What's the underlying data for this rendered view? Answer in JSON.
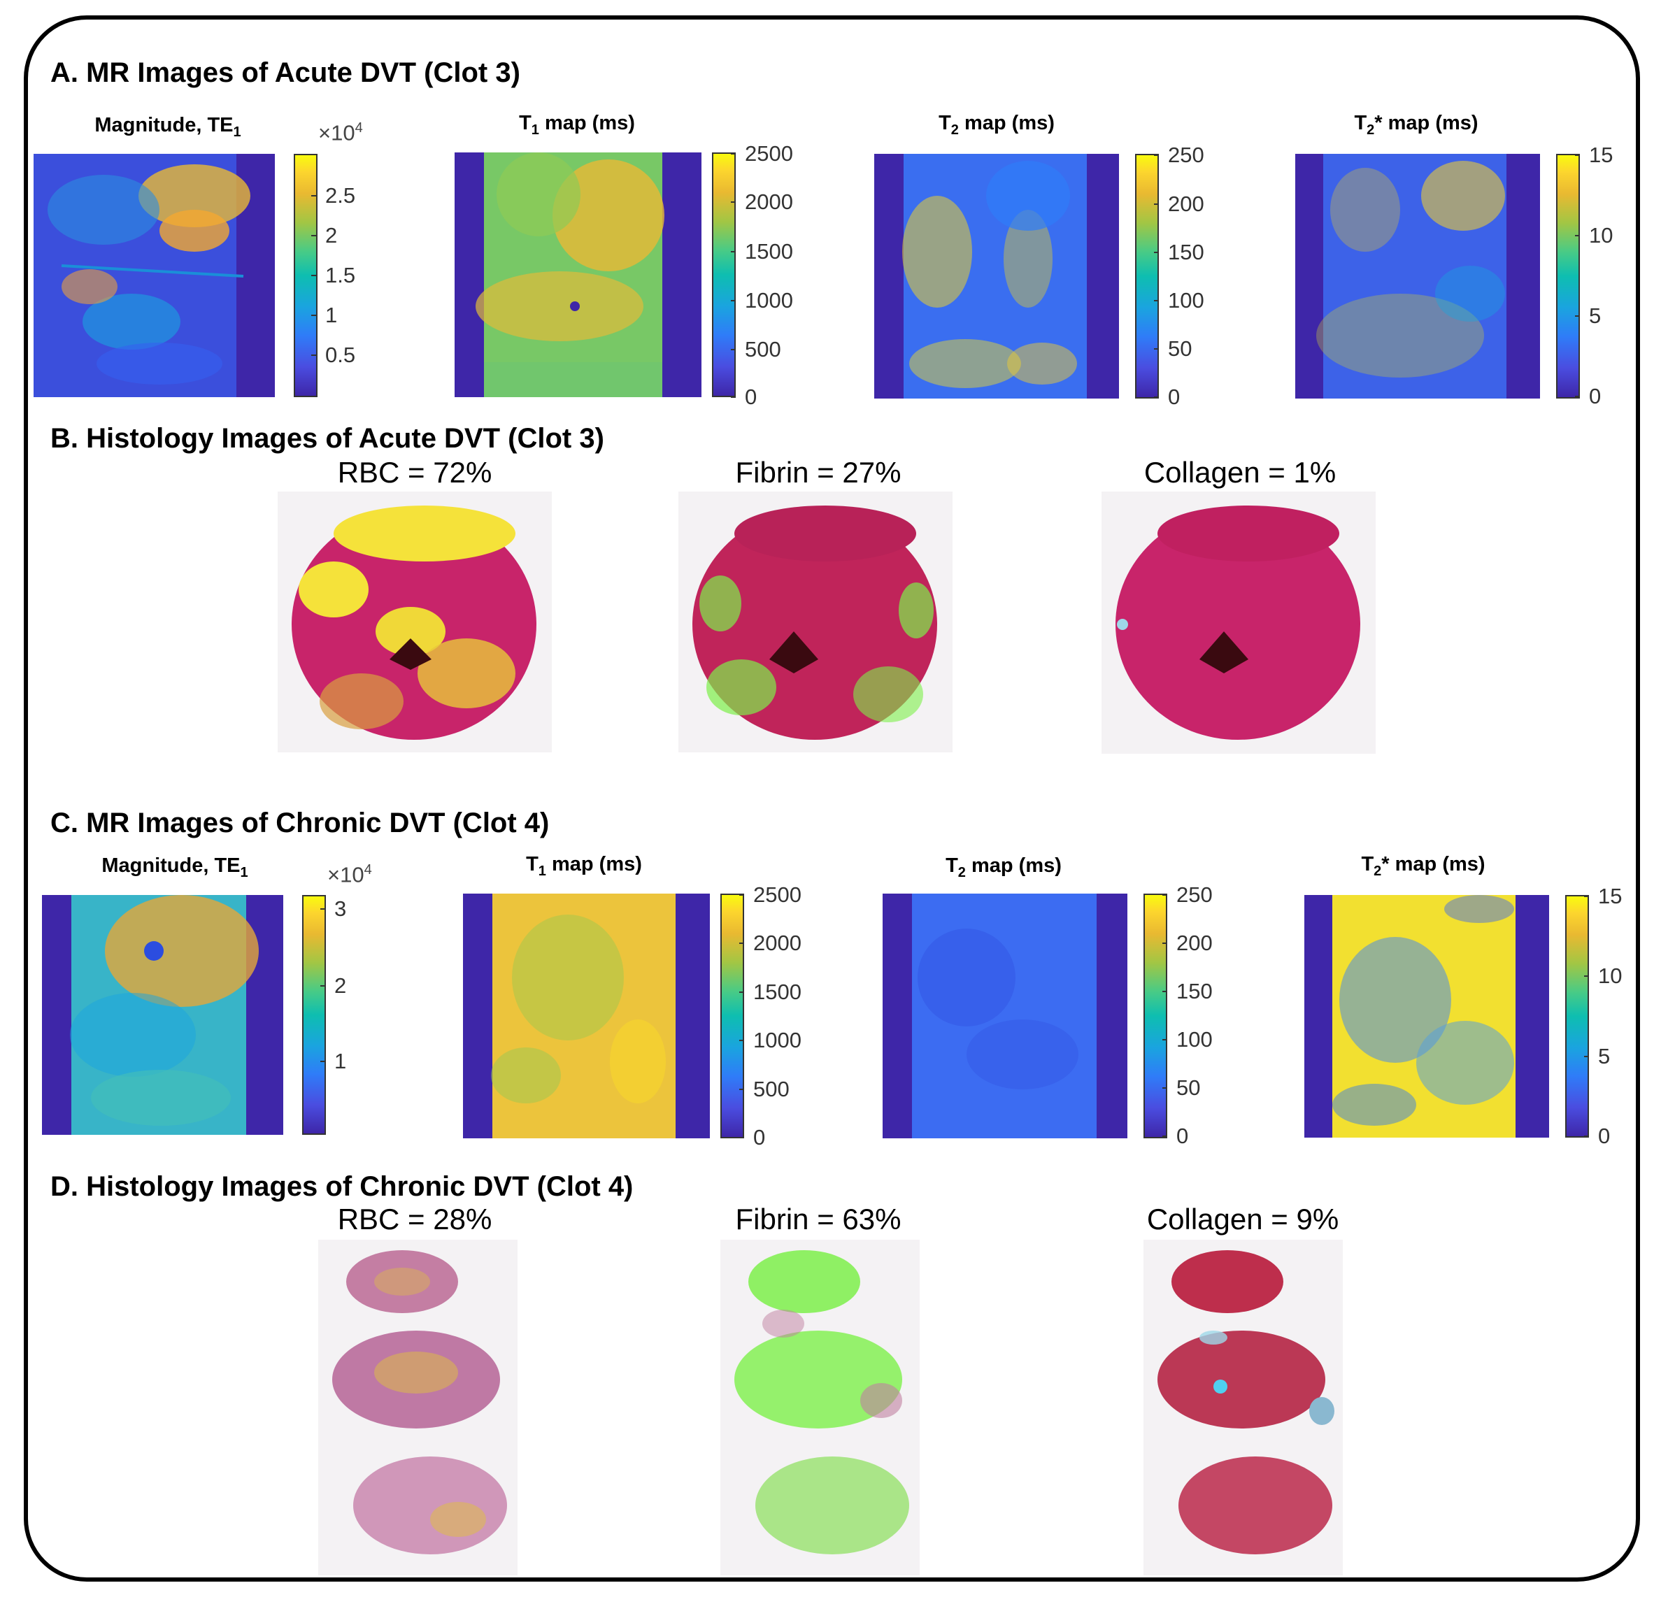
{
  "sections": {
    "a": "A. MR Images of Acute DVT (Clot 3)",
    "b": "B. Histology Images of Acute DVT (Clot 3)",
    "c": "C. MR Images of Chronic DVT (Clot 4)",
    "d": "D. Histology Images of Chronic DVT (Clot 4)"
  },
  "map_titles": {
    "magnitude": "Magnitude, TE",
    "magnitude_sub": "1",
    "t1_pre": "T",
    "t1_sub": "1",
    "t1_post": " map (ms)",
    "t2_pre": "T",
    "t2_sub": "2",
    "t2_post": " map (ms)",
    "t2s_pre": "T",
    "t2s_sub": "2",
    "t2s_post": "* map (ms)"
  },
  "multiplier": {
    "base": "×10",
    "exp": "4"
  },
  "colorbars": {
    "a_mag": {
      "ticks": [
        "2.5",
        "2",
        "1.5",
        "1",
        "0.5"
      ]
    },
    "a_t1": {
      "ticks": [
        "2500",
        "2000",
        "1500",
        "1000",
        "500",
        "0"
      ]
    },
    "a_t2": {
      "ticks": [
        "250",
        "200",
        "150",
        "100",
        "50",
        "0"
      ]
    },
    "a_t2s": {
      "ticks": [
        "15",
        "10",
        "5",
        "0"
      ]
    },
    "c_mag": {
      "ticks": [
        "3",
        "2",
        "1"
      ]
    },
    "c_t1": {
      "ticks": [
        "2500",
        "2000",
        "1500",
        "1000",
        "500",
        "0"
      ]
    },
    "c_t2": {
      "ticks": [
        "250",
        "200",
        "150",
        "100",
        "50",
        "0"
      ]
    },
    "c_t2s": {
      "ticks": [
        "15",
        "10",
        "5",
        "0"
      ]
    }
  },
  "histology": {
    "acute": {
      "rbc": "RBC = 72%",
      "fibrin": "Fibrin = 27%",
      "collagen": "Collagen = 1%"
    },
    "chronic": {
      "rbc": "RBC = 28%",
      "fibrin": "Fibrin = 63%",
      "collagen": "Collagen = 9%"
    }
  },
  "colors": {
    "parula_low": "#3e26a8",
    "parula_high": "#f9fb0e",
    "rbc_yellow": "#f5e23a",
    "tissue_magenta": "#c8246a",
    "fibrin_green": "#7df04a",
    "collagen_blue": "#9fd8e8"
  }
}
